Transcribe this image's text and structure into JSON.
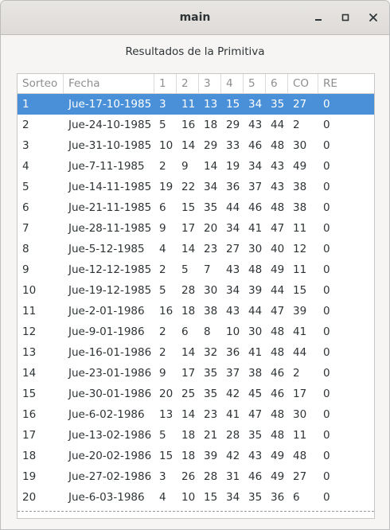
{
  "window": {
    "title": "main",
    "controls": {
      "minimize_icon": "minimize-icon",
      "maximize_icon": "maximize-icon",
      "close_icon": "close-icon"
    }
  },
  "heading": "Resultados de la Primitiva",
  "colors": {
    "selection": "#4a90d9",
    "header_text": "#8c8f8d",
    "text": "#2e3436"
  },
  "table": {
    "columns": [
      "Sorteo",
      "Fecha",
      "1",
      "2",
      "3",
      "4",
      "5",
      "6",
      "CO",
      "RE"
    ],
    "selected_row": 0,
    "rows": [
      [
        "1",
        "Jue-17-10-1985",
        "3",
        "11",
        "13",
        "15",
        "34",
        "35",
        "27",
        "0"
      ],
      [
        "2",
        "Jue-24-10-1985",
        "5",
        "16",
        "18",
        "29",
        "43",
        "44",
        "2",
        "0"
      ],
      [
        "3",
        "Jue-31-10-1985",
        "10",
        "14",
        "29",
        "33",
        "46",
        "48",
        "30",
        "0"
      ],
      [
        "4",
        "Jue-7-11-1985",
        "2",
        "9",
        "14",
        "19",
        "34",
        "43",
        "49",
        "0"
      ],
      [
        "5",
        "Jue-14-11-1985",
        "19",
        "22",
        "34",
        "36",
        "37",
        "43",
        "38",
        "0"
      ],
      [
        "6",
        "Jue-21-11-1985",
        "6",
        "15",
        "35",
        "44",
        "46",
        "48",
        "38",
        "0"
      ],
      [
        "7",
        "Jue-28-11-1985",
        "9",
        "17",
        "20",
        "34",
        "41",
        "47",
        "11",
        "0"
      ],
      [
        "8",
        "Jue-5-12-1985",
        "4",
        "14",
        "23",
        "27",
        "30",
        "40",
        "12",
        "0"
      ],
      [
        "9",
        "Jue-12-12-1985",
        "2",
        "5",
        "7",
        "43",
        "48",
        "49",
        "11",
        "0"
      ],
      [
        "10",
        "Jue-19-12-1985",
        "5",
        "28",
        "30",
        "34",
        "39",
        "44",
        "15",
        "0"
      ],
      [
        "11",
        "Jue-2-01-1986",
        "16",
        "18",
        "38",
        "43",
        "44",
        "47",
        "39",
        "0"
      ],
      [
        "12",
        "Jue-9-01-1986",
        "2",
        "6",
        "8",
        "10",
        "30",
        "48",
        "41",
        "0"
      ],
      [
        "13",
        "Jue-16-01-1986",
        "2",
        "14",
        "32",
        "36",
        "41",
        "48",
        "44",
        "0"
      ],
      [
        "14",
        "Jue-23-01-1986",
        "9",
        "17",
        "35",
        "37",
        "38",
        "46",
        "2",
        "0"
      ],
      [
        "15",
        "Jue-30-01-1986",
        "20",
        "25",
        "35",
        "42",
        "45",
        "46",
        "17",
        "0"
      ],
      [
        "16",
        "Jue-6-02-1986",
        "13",
        "14",
        "23",
        "41",
        "47",
        "48",
        "30",
        "0"
      ],
      [
        "17",
        "Jue-13-02-1986",
        "5",
        "18",
        "21",
        "28",
        "35",
        "48",
        "11",
        "0"
      ],
      [
        "18",
        "Jue-20-02-1986",
        "15",
        "18",
        "39",
        "42",
        "43",
        "49",
        "48",
        "0"
      ],
      [
        "19",
        "Jue-27-02-1986",
        "3",
        "26",
        "28",
        "31",
        "46",
        "49",
        "27",
        "0"
      ],
      [
        "20",
        "Jue-6-03-1986",
        "4",
        "10",
        "15",
        "34",
        "35",
        "36",
        "6",
        "0"
      ]
    ]
  }
}
